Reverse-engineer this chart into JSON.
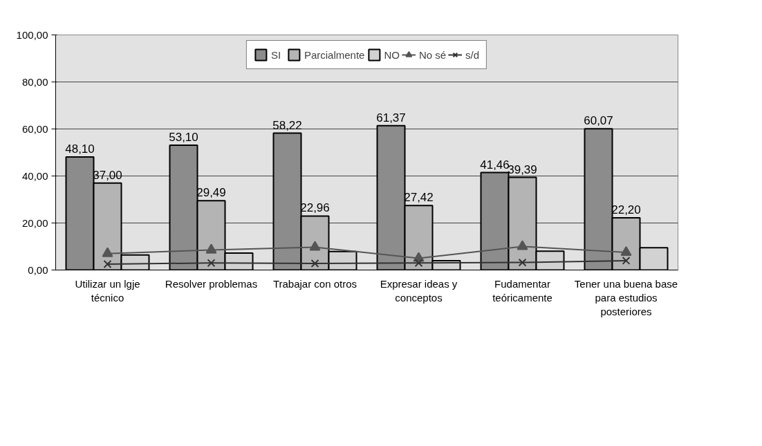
{
  "chart_data": {
    "type": "bar",
    "categories": [
      "Utilizar un lgje técnico",
      "Resolver problemas",
      "Trabajar con otros",
      "Expresar ideas y conceptos",
      "Fudamentar teóricamente",
      "Tener una buena base para estudios posteriores"
    ],
    "series": [
      {
        "name": "SI",
        "color": "#8c8c8c",
        "values": [
          48.1,
          53.1,
          58.22,
          61.37,
          41.46,
          60.07
        ],
        "value_labels": [
          "48,10",
          "53,10",
          "58,22",
          "61,37",
          "41,46",
          "60,07"
        ]
      },
      {
        "name": "Parcialmente",
        "color": "#b4b4b4",
        "values": [
          37.0,
          29.49,
          22.96,
          27.42,
          39.39,
          22.2
        ],
        "value_labels": [
          "37,00",
          "29,49",
          "22,96",
          "27,42",
          "39,39",
          "22,20"
        ]
      },
      {
        "name": "NO",
        "color": "#d2d2d2",
        "values": [
          6.4,
          7.2,
          7.9,
          4.0,
          8.0,
          9.5
        ]
      },
      {
        "name": "No sé",
        "type": "line",
        "marker": "triangle",
        "color": "#555555",
        "values": [
          7.0,
          8.5,
          9.7,
          5.0,
          10.0,
          7.5
        ]
      },
      {
        "name": "s/d",
        "type": "line",
        "marker": "cross",
        "color": "#333333",
        "values": [
          2.5,
          3.0,
          2.8,
          3.0,
          3.2,
          4.0
        ]
      }
    ],
    "ylim": [
      0,
      100
    ],
    "yticks": [
      {
        "value": 0,
        "label": "0,00"
      },
      {
        "value": 20,
        "label": "20,00"
      },
      {
        "value": 40,
        "label": "40,00"
      },
      {
        "value": 60,
        "label": "60,00"
      },
      {
        "value": 80,
        "label": "80,00"
      },
      {
        "value": 100,
        "label": "100,00"
      }
    ],
    "grid": "y",
    "legend": "top"
  }
}
